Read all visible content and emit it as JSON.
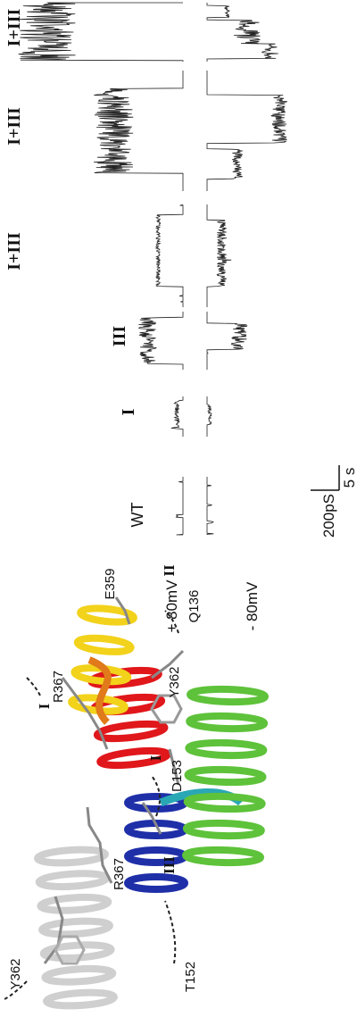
{
  "traces": {
    "conditions": [
      "+ 80mV",
      "- 80mV"
    ],
    "labels": [
      "WT",
      "I",
      "III",
      "I+III",
      "I+III",
      "I+III"
    ],
    "scale": {
      "current": "200pS",
      "time": "5 s"
    }
  },
  "structure": {
    "labels": [
      "Y362",
      "R367",
      "T152",
      "III",
      "D153",
      "I",
      "Y362",
      "Q136",
      "II",
      "E359",
      "R367",
      "I"
    ]
  }
}
